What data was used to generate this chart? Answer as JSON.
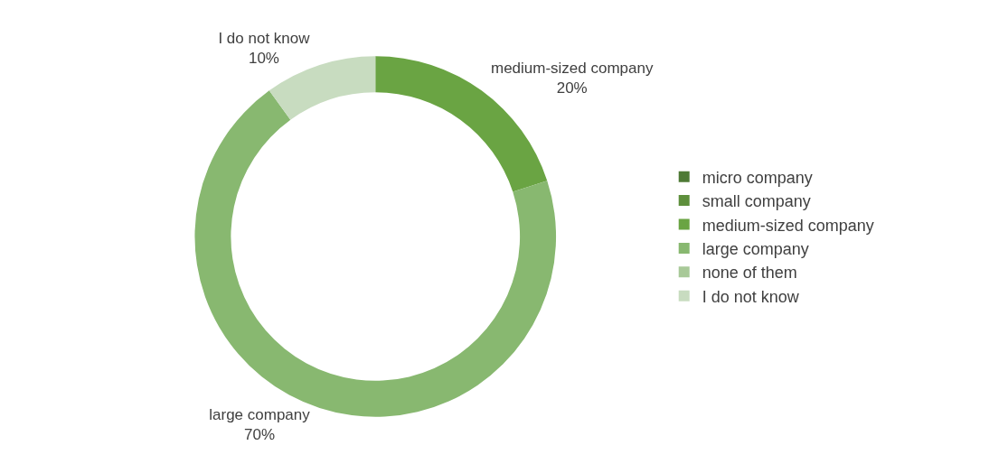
{
  "chart_data": {
    "type": "donut",
    "categories": [
      "micro company",
      "small company",
      "medium-sized company",
      "large company",
      "none of them",
      "I do not know"
    ],
    "values": [
      0,
      0,
      20,
      70,
      0,
      10
    ],
    "colors": [
      "#4e7a35",
      "#5e8f3c",
      "#6aa443",
      "#88b870",
      "#a8c998",
      "#c8dcc0"
    ],
    "value_labels": [
      null,
      null,
      "20%",
      "70%",
      null,
      "10%"
    ],
    "legend": "right"
  }
}
